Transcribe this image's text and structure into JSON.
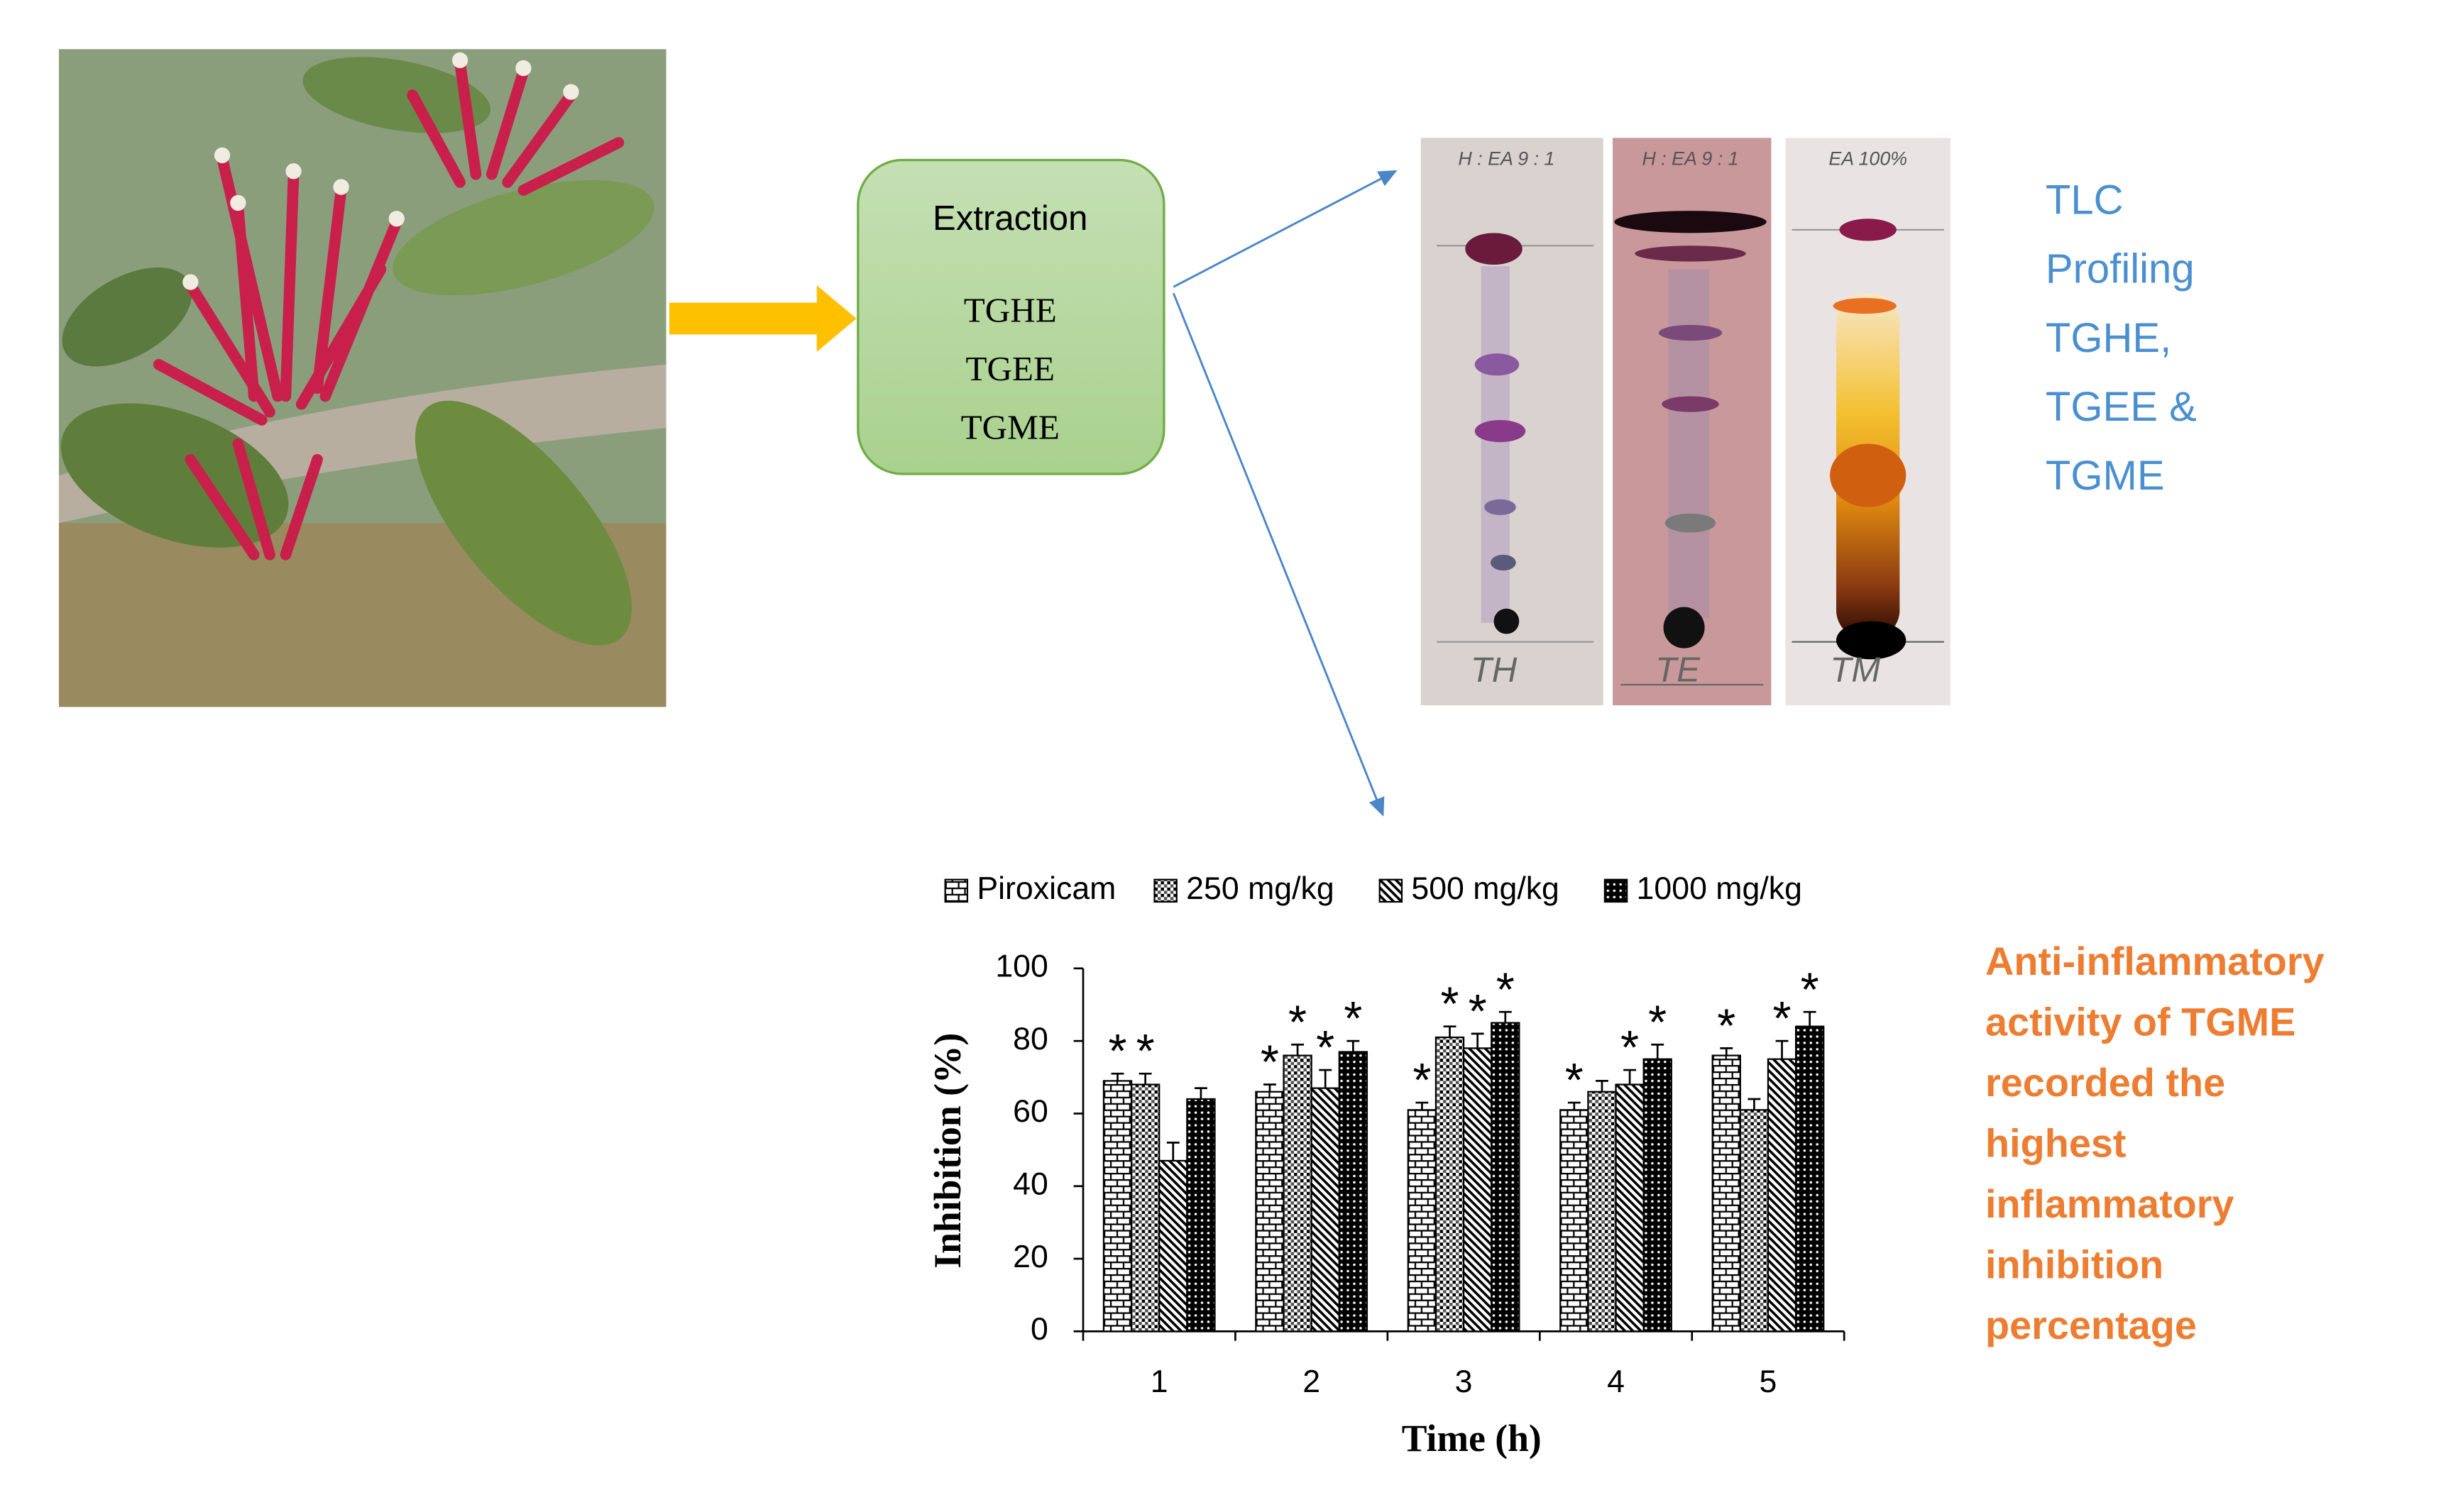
{
  "extraction": {
    "title": "Extraction",
    "extracts": [
      "TGHE",
      "TGEE",
      "TGME"
    ]
  },
  "tlc": {
    "solvents": [
      "H : EA 9 : 1",
      "H : EA 9 : 1",
      "EA 100%"
    ],
    "plates": [
      "TH",
      "TE",
      "TM"
    ],
    "caption": [
      "TLC",
      "Profiling",
      "TGHE,",
      "TGEE &",
      "TGME"
    ]
  },
  "conclusion": [
    "Anti-inflammatory",
    "activity of TGME",
    "recorded the",
    "highest",
    "inflammatory",
    "inhibition",
    "percentage"
  ],
  "chart_data": {
    "type": "bar",
    "x_label": "Time (h)",
    "y_label": "Inhibition (%)",
    "categories": [
      "1",
      "2",
      "3",
      "4",
      "5"
    ],
    "ylim": [
      0,
      100
    ],
    "yticks": [
      0,
      20,
      40,
      60,
      80,
      100
    ],
    "grid": false,
    "legend": "top",
    "series": [
      {
        "name": "Piroxicam",
        "pattern": "brick",
        "color": "#000000",
        "values": [
          69,
          66,
          61,
          61,
          76
        ],
        "errors": [
          2,
          2,
          2,
          2,
          2
        ],
        "significance": [
          "*",
          "*",
          "*",
          "*",
          "*"
        ]
      },
      {
        "name": "250 mg/kg",
        "pattern": "checker",
        "color": "#000000",
        "values": [
          68,
          76,
          81,
          66,
          61
        ],
        "errors": [
          3,
          3,
          3,
          3,
          3
        ],
        "significance": [
          "*",
          "*",
          "*",
          null,
          null
        ]
      },
      {
        "name": "500 mg/kg",
        "pattern": "diagonal",
        "color": "#000000",
        "values": [
          47,
          67,
          78,
          68,
          75
        ],
        "errors": [
          5,
          5,
          4,
          4,
          5
        ],
        "significance": [
          null,
          "*",
          "*",
          "*",
          "*"
        ]
      },
      {
        "name": "1000 mg/kg",
        "pattern": "dots",
        "color": "#000000",
        "values": [
          64,
          77,
          85,
          75,
          84
        ],
        "errors": [
          3,
          3,
          3,
          4,
          4
        ],
        "significance": [
          null,
          "*",
          "*",
          "*",
          "*"
        ]
      }
    ]
  }
}
